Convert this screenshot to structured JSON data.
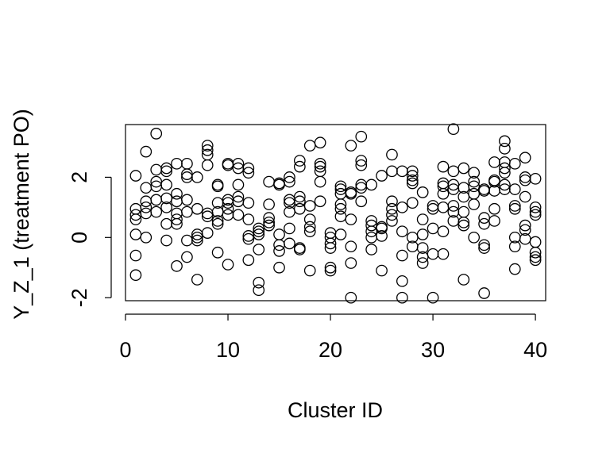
{
  "chart_data": {
    "type": "scatter",
    "title": "",
    "xlabel": "Cluster ID",
    "ylabel": "Y_Z_1 (treatment PO)",
    "xlim": [
      0,
      41
    ],
    "ylim": [
      -2.1,
      3.75
    ],
    "x_ticks": [
      0,
      10,
      20,
      30,
      40
    ],
    "y_ticks": [
      -2,
      0,
      2
    ],
    "x_tick_labels": [
      "0",
      "10",
      "20",
      "30",
      "40"
    ],
    "y_tick_labels": [
      "-2",
      "0",
      "2"
    ],
    "grid": false,
    "marker": "open-circle",
    "points": [
      [
        1,
        2.05
      ],
      [
        1,
        0.95
      ],
      [
        1,
        0.75
      ],
      [
        1,
        0.6
      ],
      [
        1,
        0.1
      ],
      [
        1,
        -0.6
      ],
      [
        1,
        -1.25
      ],
      [
        2,
        2.85
      ],
      [
        2,
        1.65
      ],
      [
        2,
        1.2
      ],
      [
        2,
        1.0
      ],
      [
        2,
        0.8
      ],
      [
        2,
        0.0
      ],
      [
        3,
        3.45
      ],
      [
        3,
        2.25
      ],
      [
        3,
        1.85
      ],
      [
        3,
        1.7
      ],
      [
        3,
        1.25
      ],
      [
        3,
        0.85
      ],
      [
        4,
        2.3
      ],
      [
        4,
        2.2
      ],
      [
        4,
        1.75
      ],
      [
        4,
        1.3
      ],
      [
        4,
        1.0
      ],
      [
        4,
        0.45
      ],
      [
        4,
        -0.1
      ],
      [
        5,
        2.45
      ],
      [
        5,
        1.45
      ],
      [
        5,
        1.2
      ],
      [
        5,
        0.8
      ],
      [
        5,
        0.6
      ],
      [
        5,
        0.45
      ],
      [
        5,
        -0.95
      ],
      [
        6,
        2.45
      ],
      [
        6,
        2.1
      ],
      [
        6,
        2.0
      ],
      [
        6,
        1.25
      ],
      [
        6,
        0.85
      ],
      [
        6,
        -0.1
      ],
      [
        6,
        -0.65
      ],
      [
        7,
        2.0
      ],
      [
        7,
        0.95
      ],
      [
        7,
        0.1
      ],
      [
        7,
        0.0
      ],
      [
        7,
        -0.1
      ],
      [
        7,
        -1.4
      ],
      [
        8,
        3.05
      ],
      [
        8,
        2.9
      ],
      [
        8,
        2.75
      ],
      [
        8,
        2.4
      ],
      [
        8,
        0.8
      ],
      [
        8,
        0.7
      ],
      [
        8,
        0.15
      ],
      [
        9,
        1.75
      ],
      [
        9,
        1.7
      ],
      [
        9,
        1.15
      ],
      [
        9,
        0.85
      ],
      [
        9,
        0.55
      ],
      [
        9,
        0.45
      ],
      [
        9,
        -0.5
      ],
      [
        10,
        2.45
      ],
      [
        10,
        2.4
      ],
      [
        10,
        1.25
      ],
      [
        10,
        1.15
      ],
      [
        10,
        0.95
      ],
      [
        10,
        0.75
      ],
      [
        10,
        -0.9
      ],
      [
        11,
        2.45
      ],
      [
        11,
        2.3
      ],
      [
        11,
        1.75
      ],
      [
        11,
        1.35
      ],
      [
        11,
        1.2
      ],
      [
        11,
        0.75
      ],
      [
        12,
        2.3
      ],
      [
        12,
        2.15
      ],
      [
        12,
        1.15
      ],
      [
        12,
        0.6
      ],
      [
        12,
        0.05
      ],
      [
        12,
        -0.05
      ],
      [
        12,
        -0.75
      ],
      [
        13,
        0.3
      ],
      [
        13,
        0.2
      ],
      [
        13,
        0.1
      ],
      [
        13,
        -0.4
      ],
      [
        13,
        -1.5
      ],
      [
        13,
        -1.75
      ],
      [
        14,
        1.85
      ],
      [
        14,
        1.1
      ],
      [
        14,
        0.65
      ],
      [
        14,
        0.5
      ],
      [
        14,
        0.4
      ],
      [
        15,
        1.8
      ],
      [
        15,
        1.75
      ],
      [
        15,
        0.1
      ],
      [
        15,
        -0.25
      ],
      [
        15,
        -0.45
      ],
      [
        15,
        -1.0
      ],
      [
        16,
        2.0
      ],
      [
        16,
        1.85
      ],
      [
        16,
        1.25
      ],
      [
        16,
        1.15
      ],
      [
        16,
        0.85
      ],
      [
        16,
        0.3
      ],
      [
        16,
        -0.2
      ],
      [
        17,
        2.55
      ],
      [
        17,
        2.35
      ],
      [
        17,
        1.35
      ],
      [
        17,
        1.2
      ],
      [
        17,
        0.95
      ],
      [
        17,
        -0.35
      ],
      [
        17,
        -0.4
      ],
      [
        18,
        3.05
      ],
      [
        18,
        1.05
      ],
      [
        18,
        0.6
      ],
      [
        18,
        0.35
      ],
      [
        18,
        0.2
      ],
      [
        18,
        -1.1
      ],
      [
        19,
        3.15
      ],
      [
        19,
        2.45
      ],
      [
        19,
        2.35
      ],
      [
        19,
        2.2
      ],
      [
        19,
        1.85
      ],
      [
        19,
        1.2
      ],
      [
        20,
        0.15
      ],
      [
        20,
        0.0
      ],
      [
        20,
        -0.2
      ],
      [
        20,
        -0.35
      ],
      [
        20,
        -1.0
      ],
      [
        20,
        -1.1
      ],
      [
        21,
        1.7
      ],
      [
        21,
        1.6
      ],
      [
        21,
        1.45
      ],
      [
        21,
        1.1
      ],
      [
        21,
        0.95
      ],
      [
        21,
        0.7
      ],
      [
        21,
        0.1
      ],
      [
        22,
        3.05
      ],
      [
        22,
        1.5
      ],
      [
        22,
        1.45
      ],
      [
        22,
        0.6
      ],
      [
        22,
        -0.3
      ],
      [
        22,
        -0.85
      ],
      [
        22,
        -2.0
      ],
      [
        23,
        3.35
      ],
      [
        23,
        2.55
      ],
      [
        23,
        2.4
      ],
      [
        23,
        1.75
      ],
      [
        23,
        1.65
      ],
      [
        23,
        1.2
      ],
      [
        24,
        1.75
      ],
      [
        24,
        0.55
      ],
      [
        24,
        0.4
      ],
      [
        24,
        0.2
      ],
      [
        24,
        0.0
      ],
      [
        24,
        -0.4
      ],
      [
        25,
        2.05
      ],
      [
        25,
        0.35
      ],
      [
        25,
        0.3
      ],
      [
        25,
        0.05
      ],
      [
        25,
        -1.1
      ],
      [
        26,
        2.75
      ],
      [
        26,
        2.2
      ],
      [
        26,
        1.2
      ],
      [
        26,
        0.95
      ],
      [
        26,
        0.75
      ],
      [
        26,
        0.55
      ],
      [
        27,
        2.2
      ],
      [
        27,
        1.0
      ],
      [
        27,
        0.2
      ],
      [
        27,
        -0.6
      ],
      [
        27,
        -1.45
      ],
      [
        27,
        -2.0
      ],
      [
        28,
        2.2
      ],
      [
        28,
        2.05
      ],
      [
        28,
        1.9
      ],
      [
        28,
        1.8
      ],
      [
        28,
        1.15
      ],
      [
        28,
        0.0
      ],
      [
        28,
        -0.3
      ],
      [
        29,
        1.5
      ],
      [
        29,
        0.6
      ],
      [
        29,
        0.1
      ],
      [
        29,
        -0.35
      ],
      [
        29,
        -0.65
      ],
      [
        29,
        -0.85
      ],
      [
        30,
        1.05
      ],
      [
        30,
        0.95
      ],
      [
        30,
        0.3
      ],
      [
        30,
        -0.55
      ],
      [
        30,
        -2.0
      ],
      [
        31,
        2.35
      ],
      [
        31,
        1.8
      ],
      [
        31,
        1.7
      ],
      [
        31,
        1.45
      ],
      [
        31,
        1.0
      ],
      [
        31,
        0.2
      ],
      [
        31,
        -0.55
      ],
      [
        32,
        3.6
      ],
      [
        32,
        2.2
      ],
      [
        32,
        1.75
      ],
      [
        32,
        1.6
      ],
      [
        32,
        1.05
      ],
      [
        32,
        0.85
      ],
      [
        32,
        0.55
      ],
      [
        33,
        2.3
      ],
      [
        33,
        1.65
      ],
      [
        33,
        1.35
      ],
      [
        33,
        0.85
      ],
      [
        33,
        0.5
      ],
      [
        33,
        0.4
      ],
      [
        33,
        -1.4
      ],
      [
        34,
        2.15
      ],
      [
        34,
        1.85
      ],
      [
        34,
        1.7
      ],
      [
        34,
        1.45
      ],
      [
        34,
        1.1
      ],
      [
        34,
        0.0
      ],
      [
        35,
        1.6
      ],
      [
        35,
        1.55
      ],
      [
        35,
        0.65
      ],
      [
        35,
        0.45
      ],
      [
        35,
        -0.25
      ],
      [
        35,
        -0.35
      ],
      [
        35,
        -1.85
      ],
      [
        36,
        2.5
      ],
      [
        36,
        1.9
      ],
      [
        36,
        1.85
      ],
      [
        36,
        1.55
      ],
      [
        36,
        0.95
      ],
      [
        36,
        0.55
      ],
      [
        37,
        3.2
      ],
      [
        37,
        2.95
      ],
      [
        37,
        2.5
      ],
      [
        37,
        2.3
      ],
      [
        37,
        2.15
      ],
      [
        37,
        1.75
      ],
      [
        37,
        1.6
      ],
      [
        38,
        2.45
      ],
      [
        38,
        1.6
      ],
      [
        38,
        1.05
      ],
      [
        38,
        0.95
      ],
      [
        38,
        0.0
      ],
      [
        38,
        -0.3
      ],
      [
        38,
        -1.05
      ],
      [
        39,
        2.65
      ],
      [
        39,
        2.0
      ],
      [
        39,
        1.9
      ],
      [
        39,
        1.35
      ],
      [
        39,
        0.4
      ],
      [
        39,
        0.25
      ],
      [
        39,
        -0.05
      ],
      [
        40,
        1.95
      ],
      [
        40,
        1.0
      ],
      [
        40,
        0.85
      ],
      [
        40,
        0.75
      ],
      [
        40,
        -0.15
      ],
      [
        40,
        -0.5
      ],
      [
        40,
        -0.65
      ],
      [
        40,
        -0.75
      ]
    ]
  }
}
